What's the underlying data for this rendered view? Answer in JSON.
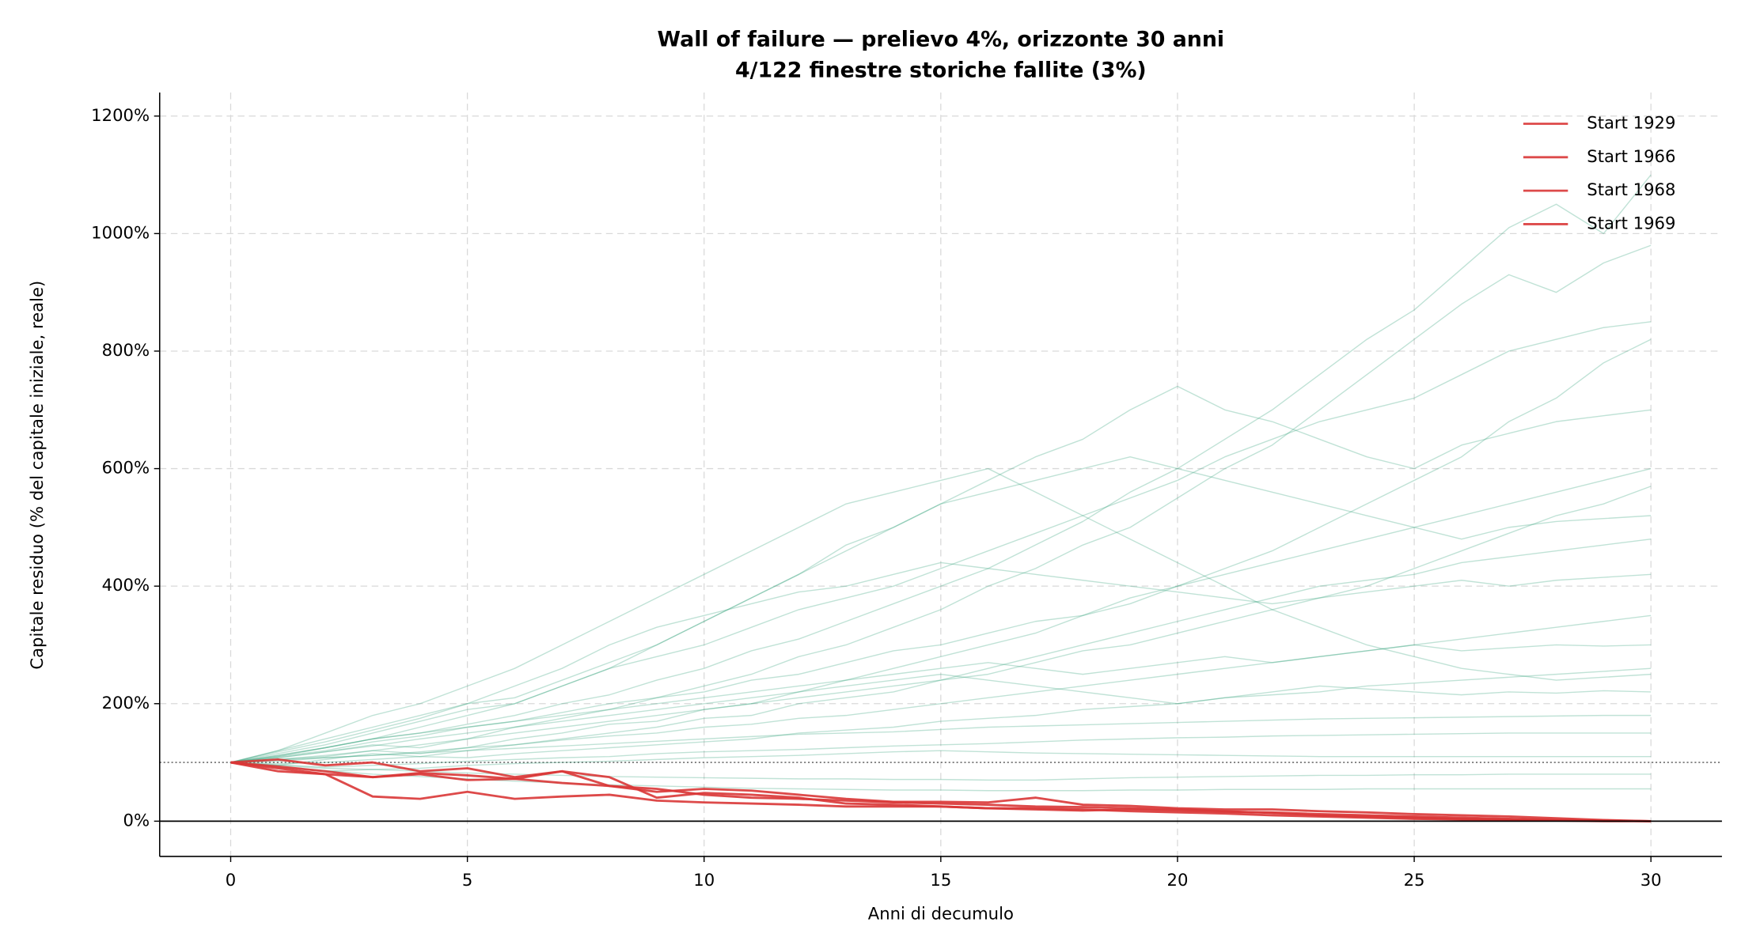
{
  "chart_data": {
    "type": "line",
    "title": "Wall of failure — prelievo 4%, orizzonte 30 anni",
    "subtitle": "4/122 finestre storiche fallite (3%)",
    "x_label": "Anni di decumulo",
    "y_label": "Capitale residuo (% del capitale iniziale, reale)",
    "x": [
      0,
      1,
      2,
      3,
      4,
      5,
      6,
      7,
      8,
      9,
      10,
      11,
      12,
      13,
      14,
      15,
      16,
      17,
      18,
      19,
      20,
      21,
      22,
      23,
      24,
      25,
      26,
      27,
      28,
      29,
      30
    ],
    "xlim": [
      -1.5,
      31.5
    ],
    "xticks": [
      0,
      5,
      10,
      15,
      20,
      25,
      30
    ],
    "ylim": [
      -60,
      1240
    ],
    "yticks": [
      {
        "value": 0,
        "label": "0%"
      },
      {
        "value": 200,
        "label": "200%"
      },
      {
        "value": 400,
        "label": "400%"
      },
      {
        "value": 600,
        "label": "600%"
      },
      {
        "value": 800,
        "label": "800%"
      },
      {
        "value": 1000,
        "label": "1000%"
      },
      {
        "value": 1200,
        "label": "1200%"
      }
    ],
    "grid": true,
    "legend": "upper right",
    "hlines": [
      {
        "y": 100,
        "style": "dotted"
      },
      {
        "y": 0,
        "style": "solid"
      }
    ],
    "series": [
      {
        "color": "#2e9e78",
        "width": 1,
        "opacity": 0.3,
        "values": [
          100,
          112,
          125,
          140,
          150,
          165,
          180,
          200,
          215,
          240,
          260,
          290,
          310,
          340,
          370,
          400,
          430,
          470,
          510,
          560,
          600,
          650,
          700,
          760,
          820,
          870,
          940,
          1010,
          1050,
          1000,
          1100
        ]
      },
      {
        "color": "#2e9e78",
        "width": 1,
        "opacity": 0.3,
        "values": [
          100,
          108,
          118,
          130,
          125,
          140,
          160,
          175,
          190,
          210,
          230,
          250,
          280,
          300,
          330,
          360,
          400,
          430,
          470,
          500,
          550,
          600,
          640,
          700,
          760,
          820,
          880,
          930,
          900,
          950,
          980
        ]
      },
      {
        "color": "#2e9e78",
        "width": 1,
        "opacity": 0.3,
        "values": [
          100,
          115,
          130,
          150,
          170,
          190,
          200,
          230,
          260,
          280,
          300,
          330,
          360,
          380,
          400,
          430,
          460,
          490,
          520,
          550,
          580,
          620,
          650,
          680,
          700,
          720,
          760,
          800,
          820,
          840,
          850
        ]
      },
      {
        "color": "#2e9e78",
        "width": 1,
        "opacity": 0.3,
        "values": [
          100,
          105,
          110,
          120,
          115,
          125,
          140,
          150,
          165,
          170,
          190,
          200,
          220,
          240,
          260,
          280,
          300,
          320,
          350,
          370,
          400,
          430,
          460,
          500,
          540,
          580,
          620,
          680,
          720,
          780,
          820
        ]
      },
      {
        "color": "#2e9e78",
        "width": 1,
        "opacity": 0.3,
        "values": [
          100,
          120,
          140,
          160,
          180,
          200,
          210,
          240,
          270,
          300,
          340,
          380,
          420,
          470,
          500,
          540,
          580,
          620,
          650,
          700,
          740,
          700,
          680,
          650,
          620,
          600,
          640,
          660,
          680,
          690,
          700
        ]
      },
      {
        "color": "#2e9e78",
        "width": 1,
        "opacity": 0.3,
        "values": [
          100,
          110,
          120,
          135,
          145,
          160,
          170,
          185,
          200,
          210,
          220,
          240,
          250,
          270,
          290,
          300,
          320,
          340,
          350,
          380,
          400,
          420,
          440,
          460,
          480,
          500,
          520,
          540,
          560,
          580,
          600
        ]
      },
      {
        "color": "#2e9e78",
        "width": 1,
        "opacity": 0.3,
        "values": [
          100,
          95,
          105,
          115,
          110,
          120,
          130,
          140,
          150,
          160,
          175,
          180,
          200,
          210,
          220,
          240,
          250,
          270,
          290,
          300,
          320,
          340,
          360,
          380,
          400,
          430,
          460,
          490,
          520,
          540,
          570
        ]
      },
      {
        "color": "#2e9e78",
        "width": 1,
        "opacity": 0.3,
        "values": [
          100,
          110,
          125,
          140,
          160,
          180,
          200,
          230,
          260,
          300,
          340,
          380,
          420,
          460,
          500,
          540,
          560,
          580,
          600,
          620,
          600,
          580,
          560,
          540,
          520,
          500,
          480,
          500,
          510,
          515,
          520
        ]
      },
      {
        "color": "#2e9e78",
        "width": 1,
        "opacity": 0.3,
        "values": [
          100,
          105,
          112,
          120,
          130,
          140,
          150,
          160,
          170,
          180,
          190,
          200,
          210,
          220,
          230,
          240,
          260,
          280,
          300,
          320,
          340,
          360,
          380,
          400,
          410,
          420,
          440,
          450,
          460,
          470,
          480
        ]
      },
      {
        "color": "#2e9e78",
        "width": 1,
        "opacity": 0.3,
        "values": [
          100,
          118,
          135,
          155,
          175,
          200,
          230,
          260,
          300,
          330,
          350,
          370,
          390,
          400,
          420,
          440,
          430,
          420,
          410,
          400,
          390,
          380,
          370,
          380,
          390,
          400,
          410,
          400,
          410,
          415,
          420
        ]
      },
      {
        "color": "#2e9e78",
        "width": 1,
        "opacity": 0.3,
        "values": [
          100,
          102,
          108,
          112,
          118,
          125,
          130,
          138,
          145,
          150,
          160,
          165,
          175,
          180,
          190,
          200,
          210,
          220,
          230,
          240,
          250,
          260,
          270,
          280,
          290,
          300,
          310,
          320,
          330,
          340,
          350
        ]
      },
      {
        "color": "#2e9e78",
        "width": 1,
        "opacity": 0.3,
        "values": [
          100,
          112,
          125,
          140,
          150,
          160,
          170,
          180,
          190,
          200,
          210,
          220,
          230,
          240,
          250,
          260,
          270,
          260,
          250,
          260,
          270,
          280,
          270,
          280,
          290,
          300,
          290,
          295,
          300,
          298,
          300
        ]
      },
      {
        "color": "#2e9e78",
        "width": 1,
        "opacity": 0.3,
        "values": [
          100,
          98,
          100,
          105,
          110,
          108,
          115,
          120,
          125,
          130,
          135,
          140,
          150,
          155,
          160,
          170,
          175,
          180,
          190,
          195,
          200,
          210,
          215,
          220,
          230,
          235,
          240,
          245,
          250,
          255,
          260
        ]
      },
      {
        "color": "#2e9e78",
        "width": 1,
        "opacity": 0.3,
        "values": [
          100,
          108,
          118,
          128,
          140,
          150,
          160,
          170,
          180,
          190,
          200,
          210,
          220,
          230,
          240,
          250,
          240,
          230,
          220,
          210,
          200,
          210,
          220,
          230,
          225,
          220,
          215,
          220,
          218,
          222,
          220
        ]
      },
      {
        "color": "#2e9e78",
        "width": 1,
        "opacity": 0.3,
        "values": [
          100,
          104,
          108,
          112,
          116,
          120,
          124,
          128,
          132,
          136,
          140,
          144,
          148,
          150,
          152,
          156,
          160,
          162,
          164,
          166,
          168,
          170,
          172,
          174,
          175,
          176,
          177,
          178,
          179,
          180,
          180
        ]
      },
      {
        "color": "#2e9e78",
        "width": 1,
        "opacity": 0.3,
        "values": [
          100,
          96,
          92,
          95,
          98,
          102,
          105,
          108,
          110,
          115,
          118,
          120,
          122,
          125,
          128,
          130,
          132,
          135,
          138,
          140,
          142,
          143,
          145,
          146,
          147,
          148,
          149,
          150,
          150,
          150,
          150
        ]
      },
      {
        "color": "#2e9e78",
        "width": 1,
        "opacity": 0.3,
        "values": [
          100,
          92,
          85,
          88,
          90,
          95,
          98,
          100,
          102,
          105,
          108,
          110,
          112,
          115,
          118,
          120,
          118,
          116,
          115,
          114,
          113,
          112,
          111,
          110,
          110,
          110,
          110,
          110,
          110,
          110,
          110
        ]
      },
      {
        "color": "#2e9e78",
        "width": 1,
        "opacity": 0.3,
        "values": [
          100,
          95,
          90,
          88,
          85,
          82,
          80,
          78,
          76,
          75,
          74,
          73,
          72,
          72,
          71,
          71,
          70,
          70,
          72,
          74,
          75,
          76,
          77,
          78,
          78,
          79,
          79,
          80,
          80,
          80,
          80
        ]
      },
      {
        "color": "#2e9e78",
        "width": 1,
        "opacity": 0.3,
        "values": [
          100,
          93,
          86,
          80,
          76,
          72,
          68,
          65,
          62,
          60,
          58,
          56,
          55,
          54,
          53,
          53,
          52,
          52,
          52,
          53,
          53,
          54,
          54,
          54,
          55,
          55,
          55,
          55,
          55,
          55,
          55
        ]
      },
      {
        "color": "#2e9e78",
        "width": 1,
        "opacity": 0.3,
        "values": [
          100,
          120,
          150,
          180,
          200,
          230,
          260,
          300,
          340,
          380,
          420,
          460,
          500,
          540,
          560,
          580,
          600,
          560,
          520,
          480,
          440,
          400,
          360,
          330,
          300,
          280,
          260,
          250,
          240,
          245,
          250
        ]
      },
      {
        "name": "Start 1929",
        "color": "#d93636",
        "width": 2,
        "opacity": 0.9,
        "values": [
          100,
          93,
          85,
          75,
          82,
          78,
          72,
          65,
          60,
          55,
          45,
          40,
          38,
          35,
          32,
          30,
          28,
          25,
          24,
          22,
          20,
          17,
          14,
          10,
          8,
          6,
          4,
          3,
          2,
          1,
          0
        ]
      },
      {
        "name": "Start 1966",
        "color": "#d93636",
        "width": 2,
        "opacity": 0.9,
        "values": [
          100,
          105,
          95,
          100,
          85,
          90,
          75,
          85,
          60,
          50,
          55,
          52,
          45,
          38,
          33,
          33,
          32,
          40,
          28,
          26,
          22,
          20,
          20,
          17,
          15,
          12,
          10,
          8,
          5,
          2,
          0
        ]
      },
      {
        "name": "Start 1968",
        "color": "#d93636",
        "width": 2,
        "opacity": 0.9,
        "values": [
          100,
          90,
          80,
          42,
          38,
          50,
          38,
          42,
          45,
          35,
          32,
          30,
          28,
          25,
          25,
          25,
          22,
          22,
          20,
          17,
          15,
          13,
          10,
          8,
          6,
          4,
          3,
          2,
          1,
          0,
          0
        ]
      },
      {
        "name": "Start 1969",
        "color": "#d93636",
        "width": 2,
        "opacity": 0.9,
        "values": [
          100,
          85,
          80,
          75,
          80,
          70,
          72,
          85,
          75,
          40,
          48,
          45,
          40,
          30,
          28,
          25,
          22,
          20,
          18,
          20,
          18,
          16,
          15,
          12,
          10,
          8,
          6,
          4,
          2,
          1,
          0
        ]
      }
    ]
  }
}
